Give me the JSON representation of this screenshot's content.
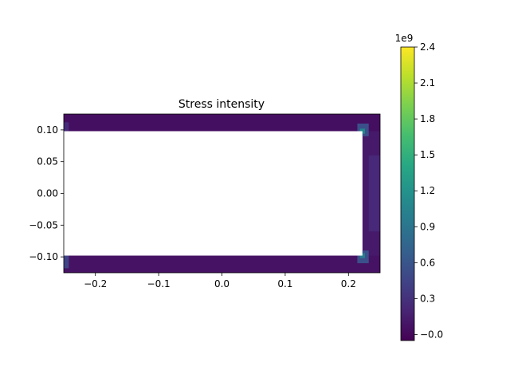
{
  "chart_data": {
    "type": "heatmap",
    "title": "Stress intensity",
    "xlabel": "",
    "ylabel": "",
    "xlim": [
      -0.25,
      0.25
    ],
    "ylim": [
      -0.125,
      0.125
    ],
    "xticks": [
      -0.2,
      -0.1,
      0.0,
      0.1,
      0.2
    ],
    "xtick_labels": [
      "−0.2",
      "−0.1",
      "0.0",
      "0.1",
      "0.2"
    ],
    "yticks": [
      -0.1,
      -0.05,
      0.0,
      0.05,
      0.1
    ],
    "ytick_labels": [
      "−0.10",
      "−0.05",
      "0.00",
      "0.05",
      "0.10"
    ],
    "hole": {
      "x": [
        -0.25,
        0.222
      ],
      "y": [
        -0.098,
        0.098
      ]
    },
    "grid": false,
    "colormap": "viridis",
    "colorbar": {
      "range": [
        -0.05,
        2.4
      ],
      "ticks": [
        0.0,
        0.3,
        0.6,
        0.9,
        1.2,
        1.5,
        1.8,
        2.1,
        2.4
      ],
      "tick_labels": [
        "−0.0",
        "0.3",
        "0.6",
        "0.9",
        "1.2",
        "1.5",
        "1.8",
        "2.1",
        "2.4"
      ],
      "offset_label": "1e9"
    },
    "regions": [
      {
        "name": "top-flange",
        "x": [
          -0.25,
          0.25
        ],
        "y": [
          0.098,
          0.125
        ],
        "value": 0.05
      },
      {
        "name": "bottom-flange",
        "x": [
          -0.25,
          0.25
        ],
        "y": [
          -0.125,
          -0.098
        ],
        "value": 0.07
      },
      {
        "name": "right-web",
        "x": [
          0.222,
          0.25
        ],
        "y": [
          -0.098,
          0.098
        ],
        "value": 0.12
      },
      {
        "name": "right-web-edge",
        "x": [
          0.232,
          0.25
        ],
        "y": [
          -0.06,
          0.06
        ],
        "value": 0.22
      },
      {
        "name": "top-right-corner",
        "x": [
          0.214,
          0.232
        ],
        "y": [
          0.09,
          0.11
        ],
        "value": 0.55
      },
      {
        "name": "bottom-right-corner",
        "x": [
          0.214,
          0.232
        ],
        "y": [
          -0.11,
          -0.09
        ],
        "value": 0.55
      },
      {
        "name": "bottom-left-corner",
        "x": [
          -0.25,
          -0.242
        ],
        "y": [
          -0.118,
          -0.098
        ],
        "value": 0.45
      },
      {
        "name": "top-left-corner",
        "x": [
          -0.25,
          -0.242
        ],
        "y": [
          0.098,
          0.112
        ],
        "value": 0.25
      },
      {
        "name": "hot-top-right",
        "x": [
          0.218,
          0.226
        ],
        "y": [
          0.094,
          0.102
        ],
        "value": 1.1
      },
      {
        "name": "hot-bottom-right",
        "x": [
          0.218,
          0.226
        ],
        "y": [
          -0.102,
          -0.094
        ],
        "value": 1.0
      }
    ]
  }
}
